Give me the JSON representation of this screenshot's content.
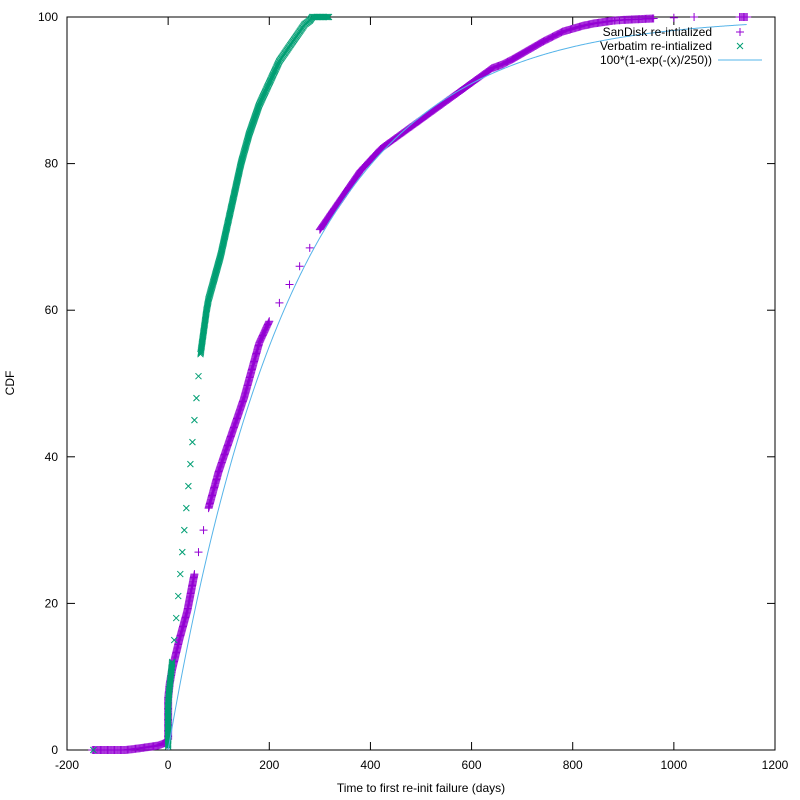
{
  "chart_data": {
    "type": "scatter",
    "xlabel": "Time to first re-init failure (days)",
    "ylabel": "CDF",
    "xlim": [
      -200,
      1200
    ],
    "ylim": [
      0,
      100
    ],
    "xticks": [
      -200,
      0,
      200,
      400,
      600,
      800,
      1000,
      1200
    ],
    "yticks": [
      0,
      20,
      40,
      60,
      80,
      100
    ],
    "grid": false,
    "legend_position": "top-right",
    "series": [
      {
        "name": "SanDisk re-intialized",
        "marker": "plus",
        "color": "#9400d3",
        "points": [
          [
            -150,
            0
          ],
          [
            -120,
            0
          ],
          [
            -85,
            0
          ],
          [
            -60,
            0.2
          ],
          [
            -40,
            0.4
          ],
          [
            -20,
            0.6
          ],
          [
            -5,
            1
          ],
          [
            0,
            1.5
          ],
          [
            0,
            3
          ],
          [
            0,
            5
          ],
          [
            0,
            7
          ],
          [
            3,
            9
          ],
          [
            8,
            11
          ],
          [
            15,
            13
          ],
          [
            22,
            15
          ],
          [
            30,
            17
          ],
          [
            38,
            19
          ],
          [
            45,
            21.5
          ],
          [
            52,
            24
          ],
          [
            60,
            27
          ],
          [
            70,
            30
          ],
          [
            80,
            33
          ],
          [
            90,
            35.5
          ],
          [
            100,
            38
          ],
          [
            110,
            40
          ],
          [
            120,
            42
          ],
          [
            130,
            44
          ],
          [
            140,
            46
          ],
          [
            150,
            48
          ],
          [
            160,
            50.5
          ],
          [
            170,
            53
          ],
          [
            180,
            55.5
          ],
          [
            190,
            57
          ],
          [
            200,
            58.5
          ],
          [
            220,
            61
          ],
          [
            240,
            63.5
          ],
          [
            260,
            66
          ],
          [
            280,
            68.5
          ],
          [
            300,
            71
          ],
          [
            320,
            73
          ],
          [
            340,
            75
          ],
          [
            360,
            77
          ],
          [
            380,
            79
          ],
          [
            400,
            80.5
          ],
          [
            420,
            82
          ],
          [
            440,
            83
          ],
          [
            460,
            84
          ],
          [
            480,
            85
          ],
          [
            500,
            86
          ],
          [
            520,
            87
          ],
          [
            540,
            88
          ],
          [
            560,
            89
          ],
          [
            580,
            90
          ],
          [
            600,
            91
          ],
          [
            620,
            92
          ],
          [
            640,
            93
          ],
          [
            660,
            93.5
          ],
          [
            680,
            94.2
          ],
          [
            700,
            95
          ],
          [
            720,
            95.8
          ],
          [
            740,
            96.6
          ],
          [
            760,
            97.3
          ],
          [
            780,
            98
          ],
          [
            800,
            98.4
          ],
          [
            820,
            98.8
          ],
          [
            840,
            99.1
          ],
          [
            860,
            99.3
          ],
          [
            880,
            99.5
          ],
          [
            900,
            99.6
          ],
          [
            930,
            99.7
          ],
          [
            960,
            99.8
          ],
          [
            1000,
            99.9
          ],
          [
            1040,
            100
          ],
          [
            1130,
            100
          ],
          [
            1145,
            100
          ]
        ]
      },
      {
        "name": "Verbatim re-intialized",
        "marker": "cross",
        "color": "#009e73",
        "points": [
          [
            -148,
            0
          ],
          [
            0,
            0.5
          ],
          [
            0,
            2
          ],
          [
            0,
            4
          ],
          [
            0,
            6
          ],
          [
            2,
            8
          ],
          [
            5,
            10
          ],
          [
            8,
            12
          ],
          [
            12,
            15
          ],
          [
            16,
            18
          ],
          [
            20,
            21
          ],
          [
            24,
            24
          ],
          [
            28,
            27
          ],
          [
            32,
            30
          ],
          [
            36,
            33
          ],
          [
            40,
            36
          ],
          [
            44,
            39
          ],
          [
            48,
            42
          ],
          [
            52,
            45
          ],
          [
            56,
            48
          ],
          [
            60,
            51
          ],
          [
            64,
            54
          ],
          [
            68,
            56
          ],
          [
            72,
            58
          ],
          [
            76,
            60
          ],
          [
            80,
            61.5
          ],
          [
            88,
            63.5
          ],
          [
            96,
            65.5
          ],
          [
            104,
            67.5
          ],
          [
            112,
            70
          ],
          [
            120,
            72.5
          ],
          [
            128,
            75
          ],
          [
            136,
            77.5
          ],
          [
            144,
            80
          ],
          [
            152,
            82
          ],
          [
            160,
            84
          ],
          [
            170,
            86
          ],
          [
            180,
            88
          ],
          [
            190,
            89.5
          ],
          [
            200,
            91
          ],
          [
            210,
            92.5
          ],
          [
            220,
            94
          ],
          [
            230,
            95
          ],
          [
            240,
            96
          ],
          [
            250,
            97
          ],
          [
            260,
            98
          ],
          [
            270,
            99
          ],
          [
            280,
            99.5
          ],
          [
            285,
            100
          ],
          [
            318,
            100
          ]
        ]
      },
      {
        "name": "100*(1-exp(-(x)/250))",
        "marker": "line",
        "color": "#56b4e9",
        "formula": "100*(1-exp(-x/250))",
        "domain": [
          0,
          1145
        ]
      }
    ]
  }
}
